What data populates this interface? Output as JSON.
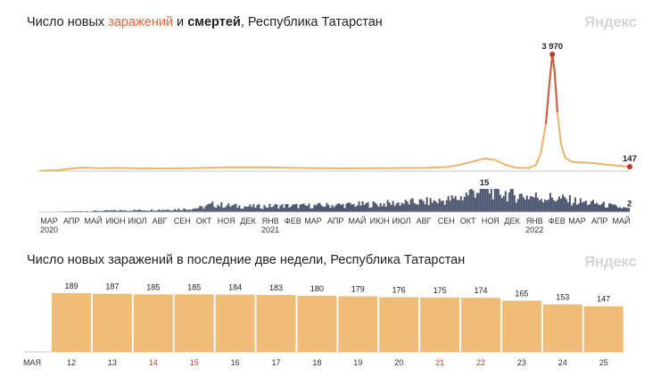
{
  "header1": {
    "prefix": "Число новых ",
    "accent": "заражений",
    "middle": " и ",
    "bold": "смертей",
    "suffix": ", Республика Татарстан",
    "logo": "Яндекс"
  },
  "header2": {
    "title": "Число новых заражений в последние две недели, Республика Татарстан",
    "logo": "Яндекс"
  },
  "colors": {
    "infections": "#efbd76",
    "infections_line": "#eeb46b",
    "peak_dot": "#b13a2f",
    "deaths": "#4d5670",
    "bars": "#efbd76",
    "weekend_label": "#d9342b",
    "axis": "#c8c8c8"
  },
  "chart_data": [
    {
      "type": "line",
      "title": "Число новых заражений и смертей, Республика Татарстан",
      "series": [
        {
          "name": "заражений",
          "x": [
            "2020-03-01",
            "2020-03-25",
            "2020-04-15",
            "2020-05-01",
            "2020-05-20",
            "2020-06-15",
            "2020-07-15",
            "2020-08-15",
            "2020-09-15",
            "2020-10-15",
            "2020-11-15",
            "2020-12-15",
            "2021-01-15",
            "2021-02-15",
            "2021-03-15",
            "2021-04-15",
            "2021-05-15",
            "2021-06-15",
            "2021-07-15",
            "2021-08-15",
            "2021-09-15",
            "2021-10-01",
            "2021-10-20",
            "2021-11-05",
            "2021-11-20",
            "2021-12-05",
            "2021-12-20",
            "2022-01-05",
            "2022-01-15",
            "2022-01-22",
            "2022-01-29",
            "2022-02-03",
            "2022-02-07",
            "2022-02-10",
            "2022-02-14",
            "2022-02-19",
            "2022-02-25",
            "2022-03-05",
            "2022-03-15",
            "2022-04-01",
            "2022-04-15",
            "2022-05-01",
            "2022-05-25"
          ],
          "values": [
            5,
            30,
            90,
            120,
            100,
            105,
            95,
            90,
            95,
            110,
            130,
            130,
            125,
            110,
            100,
            95,
            95,
            100,
            105,
            110,
            140,
            210,
            320,
            430,
            380,
            200,
            115,
            110,
            200,
            600,
            1600,
            3000,
            3970,
            3400,
            2000,
            900,
            450,
            320,
            300,
            280,
            240,
            200,
            147
          ],
          "last_label": "147",
          "peak_label": "3 970"
        },
        {
          "name": "смертей",
          "x": [
            "2020-03-01",
            "2020-04-20",
            "2020-06-15",
            "2020-08-15",
            "2020-09-20",
            "2020-10-10",
            "2020-10-25",
            "2020-11-20",
            "2020-12-20",
            "2021-01-20",
            "2021-03-01",
            "2021-04-15",
            "2021-06-01",
            "2021-07-15",
            "2021-09-01",
            "2021-10-01",
            "2021-10-20",
            "2021-11-05",
            "2021-11-25",
            "2021-12-15",
            "2022-01-10",
            "2022-02-10",
            "2022-03-10",
            "2022-04-15",
            "2022-05-10",
            "2022-05-25"
          ],
          "values": [
            0,
            0.5,
            1,
            1.5,
            2,
            3,
            5,
            4,
            3.5,
            4,
            4,
            4.5,
            5,
            6,
            7,
            9,
            14,
            15,
            13,
            11,
            10,
            9,
            7,
            5,
            3,
            2
          ],
          "last_label": "2",
          "peak_label": "15"
        }
      ],
      "x_ticks": [
        "МАР",
        "АПР",
        "МАЙ",
        "ИЮН",
        "ИЮЛ",
        "АВГ",
        "СЕН",
        "ОКТ",
        "НОЯ",
        "ДЕК",
        "ЯНВ",
        "ФЕВ",
        "МАР",
        "АПР",
        "МАЙ",
        "ИЮН",
        "ИЮЛ",
        "АВГ",
        "СЕН",
        "ОКТ",
        "НОЯ",
        "ДЕК",
        "ЯНВ",
        "ФЕВ",
        "МАР",
        "АПР",
        "МАЙ"
      ],
      "year_labels": [
        "2020",
        "2021",
        "2022"
      ]
    },
    {
      "type": "bar",
      "title": "Число новых заражений в последние две недели, Республика Татарстан",
      "month_label": "МАЯ",
      "categories": [
        "12",
        "13",
        "14",
        "15",
        "16",
        "17",
        "18",
        "19",
        "20",
        "21",
        "22",
        "23",
        "24",
        "25"
      ],
      "values": [
        189,
        187,
        185,
        185,
        184,
        183,
        180,
        179,
        176,
        175,
        174,
        165,
        153,
        147
      ],
      "weekend": [
        "14",
        "15",
        "21",
        "22"
      ]
    }
  ]
}
